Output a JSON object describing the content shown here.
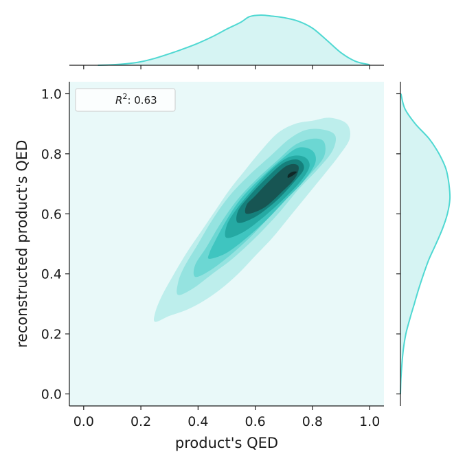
{
  "chart_data": {
    "type": "kde-joint",
    "xlabel": "product's QED",
    "ylabel": "reconstructed product's QED",
    "xlim": [
      -0.05,
      1.05
    ],
    "ylim": [
      -0.04,
      1.04
    ],
    "xticks": [
      0.0,
      0.2,
      0.4,
      0.6,
      0.8,
      1.0
    ],
    "yticks": [
      0.0,
      0.2,
      0.4,
      0.6,
      0.8,
      1.0
    ],
    "xtick_labels": [
      "0.0",
      "0.2",
      "0.4",
      "0.6",
      "0.8",
      "1.0"
    ],
    "ytick_labels": [
      "0.0",
      "0.2",
      "0.4",
      "0.6",
      "0.8",
      "1.0"
    ],
    "legend": {
      "label": ": 0.63",
      "math_symbol": "R",
      "superscript": "2",
      "placement": "top-left"
    },
    "grid": false,
    "colors": {
      "accent": "#4fd8d2",
      "background": "#e9f9f9",
      "marginal_fill": "#d6f4f3"
    },
    "contour_levels": [
      {
        "level": 1,
        "color": "#bdeeec",
        "points": [
          [
            0.25,
            0.24
          ],
          [
            0.3,
            0.26
          ],
          [
            0.36,
            0.28
          ],
          [
            0.42,
            0.31
          ],
          [
            0.48,
            0.35
          ],
          [
            0.54,
            0.4
          ],
          [
            0.6,
            0.46
          ],
          [
            0.66,
            0.52
          ],
          [
            0.72,
            0.59
          ],
          [
            0.78,
            0.66
          ],
          [
            0.84,
            0.73
          ],
          [
            0.89,
            0.79
          ],
          [
            0.93,
            0.85
          ],
          [
            0.92,
            0.9
          ],
          [
            0.86,
            0.92
          ],
          [
            0.8,
            0.91
          ],
          [
            0.74,
            0.9
          ],
          [
            0.68,
            0.87
          ],
          [
            0.62,
            0.81
          ],
          [
            0.56,
            0.74
          ],
          [
            0.51,
            0.68
          ],
          [
            0.46,
            0.61
          ],
          [
            0.41,
            0.54
          ],
          [
            0.36,
            0.47
          ],
          [
            0.31,
            0.39
          ],
          [
            0.27,
            0.32
          ],
          [
            0.25,
            0.27
          ]
        ]
      },
      {
        "level": 2,
        "color": "#95e3e0",
        "points": [
          [
            0.33,
            0.33
          ],
          [
            0.38,
            0.35
          ],
          [
            0.45,
            0.4
          ],
          [
            0.52,
            0.45
          ],
          [
            0.6,
            0.52
          ],
          [
            0.68,
            0.6
          ],
          [
            0.75,
            0.68
          ],
          [
            0.82,
            0.75
          ],
          [
            0.87,
            0.81
          ],
          [
            0.88,
            0.86
          ],
          [
            0.84,
            0.88
          ],
          [
            0.78,
            0.88
          ],
          [
            0.72,
            0.85
          ],
          [
            0.65,
            0.79
          ],
          [
            0.58,
            0.73
          ],
          [
            0.51,
            0.66
          ],
          [
            0.45,
            0.58
          ],
          [
            0.4,
            0.5
          ],
          [
            0.35,
            0.42
          ],
          [
            0.33,
            0.37
          ]
        ]
      },
      {
        "level": 3,
        "color": "#6cd7d3",
        "points": [
          [
            0.39,
            0.39
          ],
          [
            0.44,
            0.41
          ],
          [
            0.51,
            0.46
          ],
          [
            0.58,
            0.52
          ],
          [
            0.65,
            0.59
          ],
          [
            0.72,
            0.66
          ],
          [
            0.79,
            0.73
          ],
          [
            0.84,
            0.79
          ],
          [
            0.84,
            0.84
          ],
          [
            0.8,
            0.85
          ],
          [
            0.74,
            0.83
          ],
          [
            0.68,
            0.78
          ],
          [
            0.61,
            0.72
          ],
          [
            0.54,
            0.65
          ],
          [
            0.48,
            0.57
          ],
          [
            0.43,
            0.49
          ],
          [
            0.39,
            0.43
          ]
        ]
      },
      {
        "level": 4,
        "color": "#3fc5c0",
        "points": [
          [
            0.44,
            0.45
          ],
          [
            0.5,
            0.47
          ],
          [
            0.57,
            0.52
          ],
          [
            0.64,
            0.58
          ],
          [
            0.71,
            0.65
          ],
          [
            0.77,
            0.71
          ],
          [
            0.81,
            0.77
          ],
          [
            0.8,
            0.81
          ],
          [
            0.75,
            0.82
          ],
          [
            0.69,
            0.78
          ],
          [
            0.62,
            0.72
          ],
          [
            0.55,
            0.65
          ],
          [
            0.5,
            0.58
          ],
          [
            0.46,
            0.51
          ],
          [
            0.44,
            0.47
          ]
        ]
      },
      {
        "level": 5,
        "color": "#25a9a3",
        "points": [
          [
            0.5,
            0.52
          ],
          [
            0.56,
            0.54
          ],
          [
            0.63,
            0.59
          ],
          [
            0.7,
            0.65
          ],
          [
            0.76,
            0.71
          ],
          [
            0.79,
            0.76
          ],
          [
            0.77,
            0.79
          ],
          [
            0.72,
            0.79
          ],
          [
            0.66,
            0.75
          ],
          [
            0.59,
            0.68
          ],
          [
            0.53,
            0.61
          ],
          [
            0.5,
            0.56
          ]
        ]
      },
      {
        "level": 6,
        "color": "#15807c",
        "points": [
          [
            0.54,
            0.57
          ],
          [
            0.6,
            0.59
          ],
          [
            0.67,
            0.64
          ],
          [
            0.73,
            0.7
          ],
          [
            0.77,
            0.75
          ],
          [
            0.75,
            0.78
          ],
          [
            0.7,
            0.77
          ],
          [
            0.64,
            0.72
          ],
          [
            0.58,
            0.66
          ],
          [
            0.54,
            0.61
          ]
        ]
      },
      {
        "level": 7,
        "color": "#175553",
        "points": [
          [
            0.57,
            0.6
          ],
          [
            0.63,
            0.62
          ],
          [
            0.69,
            0.67
          ],
          [
            0.74,
            0.72
          ],
          [
            0.75,
            0.76
          ],
          [
            0.71,
            0.76
          ],
          [
            0.65,
            0.71
          ],
          [
            0.6,
            0.66
          ],
          [
            0.57,
            0.63
          ]
        ]
      },
      {
        "level": 8,
        "color": "#0f2827",
        "points": [
          [
            0.715,
            0.72
          ],
          [
            0.735,
            0.73
          ],
          [
            0.745,
            0.74
          ],
          [
            0.73,
            0.74
          ],
          [
            0.715,
            0.73
          ]
        ]
      }
    ],
    "marginal_x": {
      "x": [
        0.05,
        0.1,
        0.15,
        0.2,
        0.25,
        0.3,
        0.35,
        0.4,
        0.45,
        0.5,
        0.55,
        0.58,
        0.62,
        0.66,
        0.7,
        0.75,
        0.8,
        0.85,
        0.9,
        0.95,
        1.0
      ],
      "density": [
        0.0,
        0.01,
        0.03,
        0.07,
        0.14,
        0.23,
        0.33,
        0.44,
        0.57,
        0.72,
        0.86,
        0.97,
        1.0,
        0.98,
        0.95,
        0.88,
        0.74,
        0.5,
        0.25,
        0.08,
        0.01
      ]
    },
    "marginal_y": {
      "y": [
        0.0,
        0.05,
        0.1,
        0.15,
        0.2,
        0.25,
        0.3,
        0.35,
        0.4,
        0.45,
        0.5,
        0.55,
        0.6,
        0.65,
        0.7,
        0.75,
        0.8,
        0.85,
        0.9,
        0.95,
        1.0
      ],
      "density": [
        0.0,
        0.01,
        0.03,
        0.06,
        0.11,
        0.19,
        0.28,
        0.37,
        0.47,
        0.58,
        0.72,
        0.85,
        0.95,
        1.0,
        0.98,
        0.92,
        0.78,
        0.58,
        0.3,
        0.09,
        0.01
      ]
    }
  }
}
